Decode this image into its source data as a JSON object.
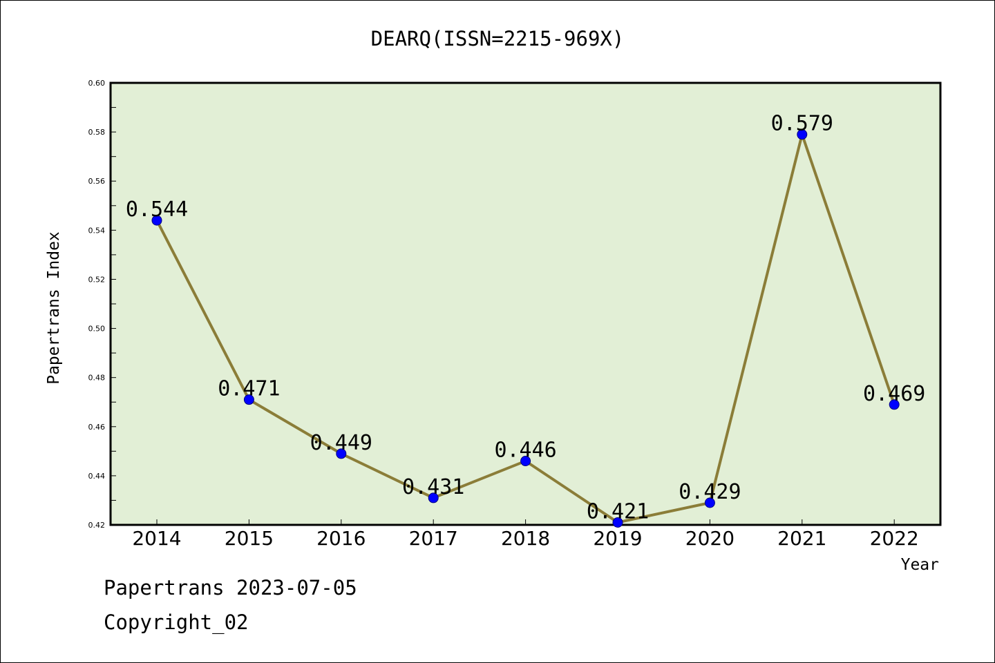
{
  "chart_data": {
    "type": "line",
    "title": "DEARQ(ISSN=2215-969X)",
    "xlabel": "Year",
    "ylabel": "Papertrans Index",
    "categories": [
      "2014",
      "2015",
      "2016",
      "2017",
      "2018",
      "2019",
      "2020",
      "2021",
      "2022"
    ],
    "series": [
      {
        "values": [
          0.544,
          0.471,
          0.449,
          0.431,
          0.446,
          0.421,
          0.429,
          0.579,
          0.469
        ],
        "data_labels": [
          "0.544",
          "0.471",
          "0.449",
          "0.431",
          "0.446",
          "0.421",
          "0.429",
          "0.579",
          "0.469"
        ]
      }
    ],
    "ylim": [
      0.42,
      0.6
    ],
    "yticks": [
      "0.42",
      "0.44",
      "0.46",
      "0.48",
      "0.50",
      "0.52",
      "0.54",
      "0.56",
      "0.58",
      "0.60"
    ],
    "grid": false,
    "colors": {
      "plot_background": "#e2efd6",
      "line": "#8b7d38",
      "marker": "#0000ff",
      "marker_edge": "#000080"
    }
  },
  "footer": {
    "line1": "Papertrans 2023-07-05",
    "line2": "Copyright_02"
  }
}
